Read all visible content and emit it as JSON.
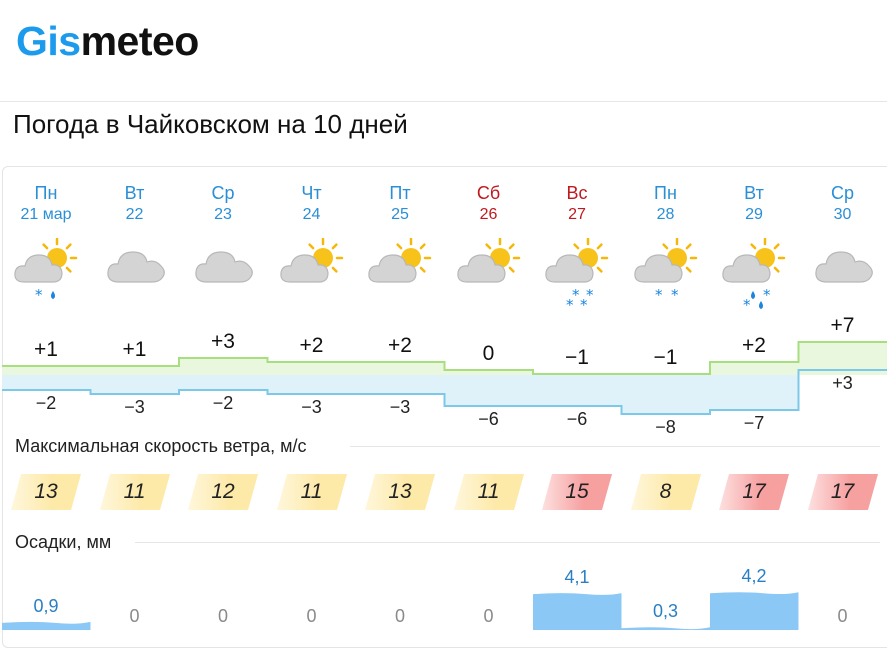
{
  "brand": {
    "part1": "Gis",
    "part2": "meteo"
  },
  "page_title": "Погода в Чайковском на 10 дней",
  "days": [
    {
      "dow": "Пн",
      "date": "21 мар",
      "weekend": false,
      "icon": "partly-cloudy-sun-icon",
      "precip": "snow-rain",
      "tmax": "+1",
      "tmin": "−2",
      "tmax_v": 1,
      "tmin_v": -2,
      "wind": "13",
      "wind_level": "moderate",
      "prec": "0,9",
      "prec_v": 0.9
    },
    {
      "dow": "Вт",
      "date": "22",
      "weekend": false,
      "icon": "cloudy-icon",
      "precip": "none",
      "tmax": "+1",
      "tmin": "−3",
      "tmax_v": 1,
      "tmin_v": -3,
      "wind": "11",
      "wind_level": "moderate",
      "prec": "0",
      "prec_v": 0
    },
    {
      "dow": "Ср",
      "date": "23",
      "weekend": false,
      "icon": "cloudy-icon",
      "precip": "none",
      "tmax": "+3",
      "tmin": "−2",
      "tmax_v": 3,
      "tmin_v": -2,
      "wind": "12",
      "wind_level": "moderate",
      "prec": "0",
      "prec_v": 0
    },
    {
      "dow": "Чт",
      "date": "24",
      "weekend": false,
      "icon": "partly-cloudy-sun-icon",
      "precip": "none",
      "tmax": "+2",
      "tmin": "−3",
      "tmax_v": 2,
      "tmin_v": -3,
      "wind": "11",
      "wind_level": "moderate",
      "prec": "0",
      "prec_v": 0
    },
    {
      "dow": "Пт",
      "date": "25",
      "weekend": false,
      "icon": "partly-cloudy-sun-icon",
      "precip": "none",
      "tmax": "+2",
      "tmin": "−3",
      "tmax_v": 2,
      "tmin_v": -3,
      "wind": "13",
      "wind_level": "moderate",
      "prec": "0",
      "prec_v": 0
    },
    {
      "dow": "Сб",
      "date": "26",
      "weekend": true,
      "icon": "partly-cloudy-sun-icon",
      "precip": "none",
      "tmax": "0",
      "tmin": "−6",
      "tmax_v": 0,
      "tmin_v": -6,
      "wind": "11",
      "wind_level": "moderate",
      "prec": "0",
      "prec_v": 0
    },
    {
      "dow": "Вс",
      "date": "27",
      "weekend": true,
      "icon": "partly-cloudy-sun-icon",
      "precip": "snow-heavy",
      "tmax": "−1",
      "tmin": "−6",
      "tmax_v": -1,
      "tmin_v": -6,
      "wind": "15",
      "wind_level": "strong",
      "prec": "4,1",
      "prec_v": 4.1
    },
    {
      "dow": "Пн",
      "date": "28",
      "weekend": false,
      "icon": "partly-cloudy-sun-icon",
      "precip": "snow-light",
      "tmax": "−1",
      "tmin": "−8",
      "tmax_v": -1,
      "tmin_v": -8,
      "wind": "8",
      "wind_level": "moderate",
      "prec": "0,3",
      "prec_v": 0.3
    },
    {
      "dow": "Вт",
      "date": "29",
      "weekend": false,
      "icon": "partly-cloudy-sun-icon",
      "precip": "snow-rain-heavy",
      "tmax": "+2",
      "tmin": "−7",
      "tmax_v": 2,
      "tmin_v": -7,
      "wind": "17",
      "wind_level": "strong",
      "prec": "4,2",
      "prec_v": 4.2
    },
    {
      "dow": "Ср",
      "date": "30",
      "weekend": false,
      "icon": "cloudy-icon",
      "precip": "none",
      "tmax": "+7",
      "tmin": "+3",
      "tmax_v": 7,
      "tmin_v": 3,
      "wind": "17",
      "wind_level": "strong",
      "prec": "0",
      "prec_v": 0
    }
  ],
  "wind_section": {
    "label": "Максимальная скорость ветра, м/с"
  },
  "precip_section": {
    "label": "Осадки, мм"
  },
  "colors": {
    "brand_blue": "#1c9bed",
    "day_blue": "#2a8fd6",
    "weekend_red": "#c0181e",
    "wind_moderate": "#fde9a8",
    "wind_strong": "#f7a0a0",
    "temp_max_line": "#a7df7f",
    "temp_min_line": "#7cc8e8",
    "precip_bar": "#8cc8f5"
  }
}
